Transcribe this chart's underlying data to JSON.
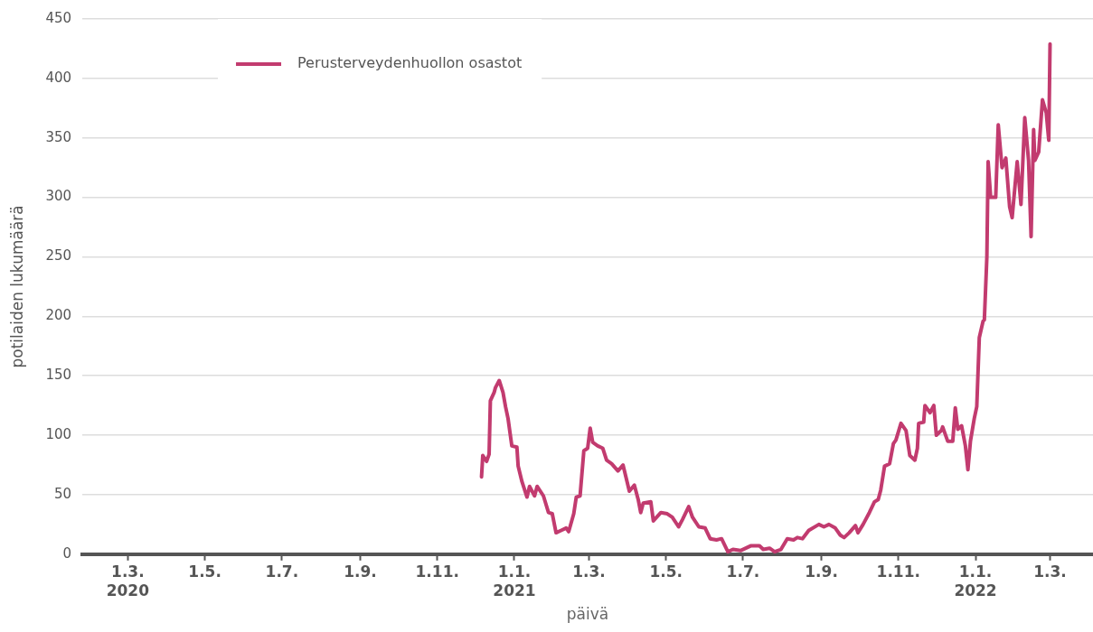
{
  "chart_data": {
    "type": "line",
    "xlabel": "päivä",
    "ylabel": "potilaiden lukumäärä",
    "legend": "top left",
    "grid": "y",
    "marker": "none",
    "line_style": "solid",
    "xlim": [
      "2020-01-25",
      "2022-04-04"
    ],
    "xticks": [
      {
        "value": "2020-03-01",
        "label": "1.3.\n2020"
      },
      {
        "value": "2020-05-01",
        "label": "1.5."
      },
      {
        "value": "2020-07-01",
        "label": "1.7."
      },
      {
        "value": "2020-09-01",
        "label": "1.9."
      },
      {
        "value": "2020-11-01",
        "label": "1.11."
      },
      {
        "value": "2021-01-01",
        "label": "1.1.\n2021"
      },
      {
        "value": "2021-03-01",
        "label": "1.3."
      },
      {
        "value": "2021-05-01",
        "label": "1.5."
      },
      {
        "value": "2021-07-01",
        "label": "1.7."
      },
      {
        "value": "2021-09-01",
        "label": "1.9."
      },
      {
        "value": "2021-11-01",
        "label": "1.11."
      },
      {
        "value": "2022-01-01",
        "label": "1.1.\n2022"
      },
      {
        "value": "2022-03-01",
        "label": "1.3."
      }
    ],
    "ylim": [
      0,
      450
    ],
    "yticks": [
      0,
      50,
      100,
      150,
      200,
      250,
      300,
      350,
      400,
      450
    ],
    "x": [
      "2020-12-06",
      "2020-12-07",
      "2020-12-10",
      "2020-12-12",
      "2020-12-13",
      "2020-12-16",
      "2020-12-17",
      "2020-12-20",
      "2020-12-23",
      "2020-12-25",
      "2020-12-27",
      "2020-12-30",
      "2021-01-03",
      "2021-01-04",
      "2021-01-07",
      "2021-01-11",
      "2021-01-13",
      "2021-01-17",
      "2021-01-19",
      "2021-01-24",
      "2021-01-28",
      "2021-01-31",
      "2021-02-03",
      "2021-02-07",
      "2021-02-11",
      "2021-02-13",
      "2021-02-17",
      "2021-02-19",
      "2021-02-22",
      "2021-02-25",
      "2021-02-28",
      "2021-03-02",
      "2021-03-04",
      "2021-03-08",
      "2021-03-12",
      "2021-03-15",
      "2021-03-19",
      "2021-03-24",
      "2021-03-28",
      "2021-04-02",
      "2021-04-06",
      "2021-04-09",
      "2021-04-11",
      "2021-04-13",
      "2021-04-19",
      "2021-04-21",
      "2021-04-27",
      "2021-05-02",
      "2021-05-06",
      "2021-05-11",
      "2021-05-14",
      "2021-05-19",
      "2021-05-22",
      "2021-05-27",
      "2021-06-01",
      "2021-06-05",
      "2021-06-10",
      "2021-06-14",
      "2021-06-19",
      "2021-06-23",
      "2021-06-29",
      "2021-07-07",
      "2021-07-14",
      "2021-07-17",
      "2021-07-22",
      "2021-07-26",
      "2021-07-31",
      "2021-08-05",
      "2021-08-10",
      "2021-08-13",
      "2021-08-17",
      "2021-08-22",
      "2021-08-30",
      "2021-09-03",
      "2021-09-07",
      "2021-09-12",
      "2021-09-16",
      "2021-09-19",
      "2021-09-23",
      "2021-09-28",
      "2021-09-30",
      "2021-10-04",
      "2021-10-09",
      "2021-10-13",
      "2021-10-16",
      "2021-10-18",
      "2021-10-21",
      "2021-10-25",
      "2021-10-28",
      "2021-10-30",
      "2021-11-03",
      "2021-11-07",
      "2021-11-10",
      "2021-11-14",
      "2021-11-16",
      "2021-11-17",
      "2021-11-21",
      "2021-11-22",
      "2021-11-26",
      "2021-11-29",
      "2021-12-01",
      "2021-12-05",
      "2021-12-06",
      "2021-12-10",
      "2021-12-14",
      "2021-12-16",
      "2021-12-18",
      "2021-12-21",
      "2021-12-24",
      "2021-12-26",
      "2021-12-28",
      "2021-12-31",
      "2022-01-02",
      "2022-01-04",
      "2022-01-07",
      "2022-01-08",
      "2022-01-10",
      "2022-01-11",
      "2022-01-13",
      "2022-01-17",
      "2022-01-19",
      "2022-01-22",
      "2022-01-25",
      "2022-01-28",
      "2022-01-30",
      "2022-02-03",
      "2022-02-06",
      "2022-02-09",
      "2022-02-12",
      "2022-02-14",
      "2022-02-16",
      "2022-02-17",
      "2022-02-20",
      "2022-02-23",
      "2022-02-26",
      "2022-02-28",
      "2022-03-01"
    ],
    "series": [
      {
        "name": "Perusterveydenhuollon osastot",
        "color": "#c23b6f",
        "values": [
          65,
          83,
          78,
          84,
          129,
          136,
          140,
          146,
          136,
          124,
          114,
          91,
          90,
          74,
          61,
          48,
          57,
          49,
          57,
          49,
          35,
          34,
          18,
          20,
          22,
          19,
          34,
          48,
          49,
          87,
          89,
          106,
          94,
          91,
          89,
          79,
          76,
          70,
          75,
          53,
          58,
          46,
          35,
          43,
          44,
          28,
          35,
          34,
          31,
          23,
          29,
          40,
          31,
          23,
          22,
          13,
          12,
          13,
          2,
          4,
          3,
          7,
          7,
          4,
          5,
          2,
          4,
          13,
          12,
          14,
          13,
          20,
          25,
          23,
          25,
          22,
          16,
          14,
          18,
          24,
          18,
          25,
          35,
          44,
          46,
          54,
          74,
          76,
          93,
          96,
          110,
          104,
          83,
          79,
          89,
          110,
          111,
          125,
          119,
          125,
          100,
          104,
          107,
          95,
          95,
          123,
          105,
          108,
          91,
          71,
          95,
          114,
          124,
          182,
          196,
          197,
          250,
          330,
          300,
          300,
          361,
          325,
          333,
          292,
          283,
          330,
          294,
          367,
          331,
          267,
          357,
          331,
          338,
          382,
          371,
          348,
          429
        ]
      }
    ]
  }
}
